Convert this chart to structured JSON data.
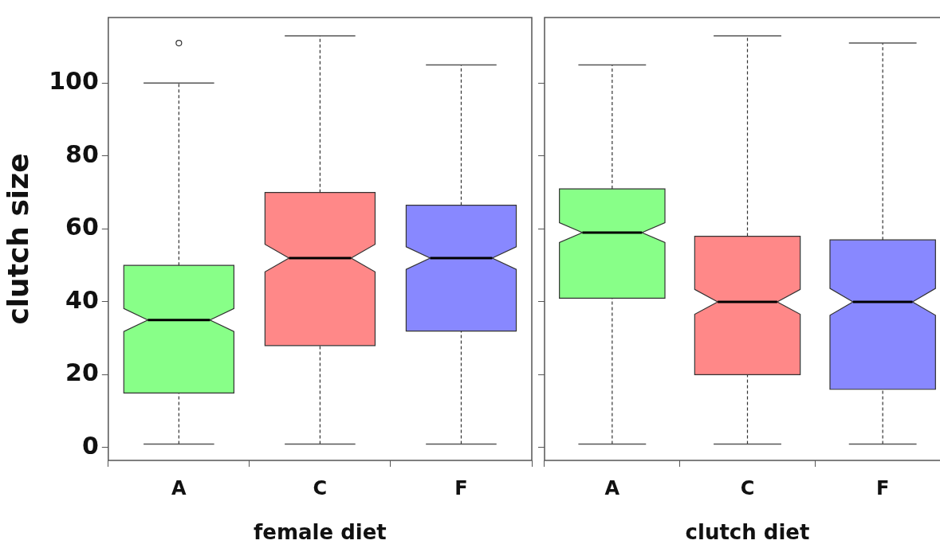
{
  "chart_data": [
    {
      "type": "box",
      "categories": [
        "A",
        "C",
        "F"
      ],
      "colors": [
        "#88ff88",
        "#ff8888",
        "#8888ff"
      ],
      "xlabel": "female diet",
      "ylabel": "clutch size",
      "ylim": [
        -3.5,
        118
      ],
      "yticks": [
        0,
        20,
        40,
        60,
        80,
        100
      ],
      "grid": false,
      "legend": false,
      "boxes": [
        {
          "low": 1,
          "q1": 15,
          "median": 35,
          "q3": 50,
          "high": 100,
          "outliers": [
            111
          ]
        },
        {
          "low": 1,
          "q1": 28,
          "median": 52,
          "q3": 70,
          "high": 113
        },
        {
          "low": 1,
          "q1": 32,
          "median": 52,
          "q3": 66.5,
          "high": 105
        }
      ]
    },
    {
      "type": "box",
      "categories": [
        "A",
        "C",
        "F"
      ],
      "colors": [
        "#88ff88",
        "#ff8888",
        "#8888ff"
      ],
      "xlabel": "clutch diet",
      "ylim": [
        -3.5,
        118
      ],
      "yticks": [
        0,
        20,
        40,
        60,
        80,
        100
      ],
      "grid": false,
      "legend": false,
      "tick_labels": "x",
      "boxes": [
        {
          "low": 1,
          "q1": 41,
          "median": 59,
          "q3": 71,
          "high": 105
        },
        {
          "low": 1,
          "q1": 20,
          "median": 40,
          "q3": 58,
          "high": 113
        },
        {
          "low": 1,
          "q1": 16,
          "median": 40,
          "q3": 57,
          "high": 111
        }
      ]
    }
  ]
}
